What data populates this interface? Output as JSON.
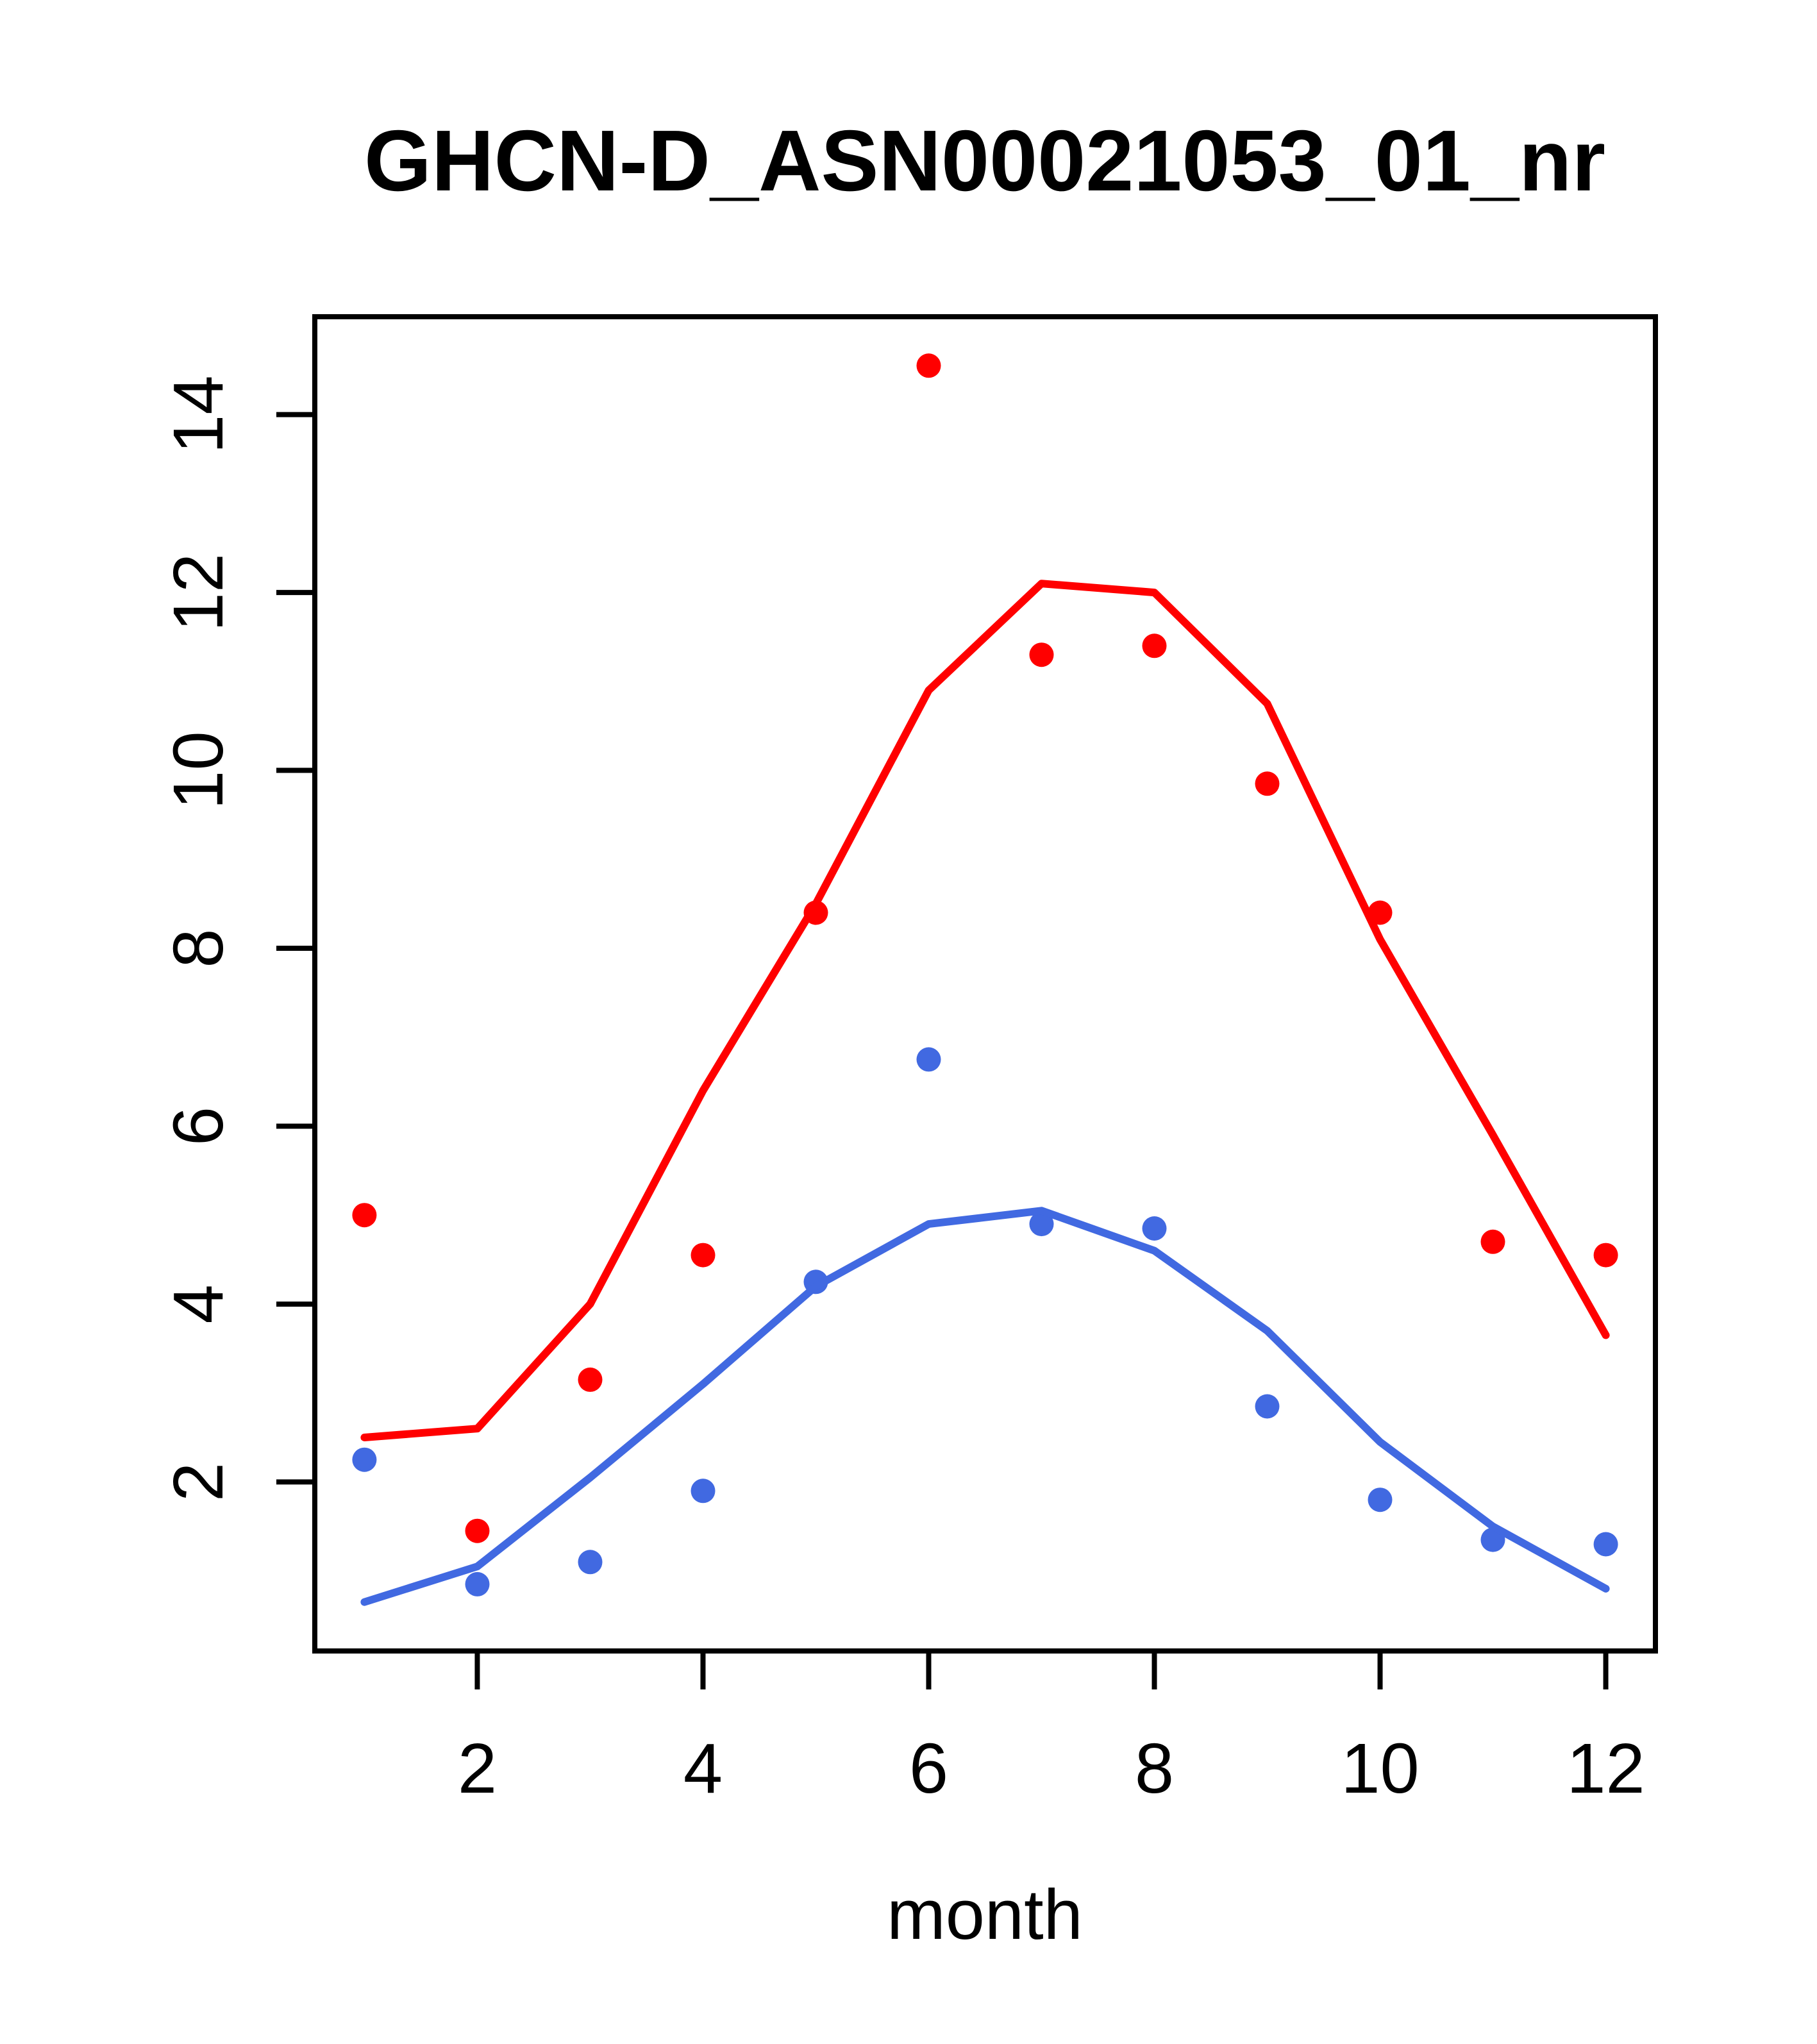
{
  "page": {
    "background_color": "#ffffff",
    "foreground_color": "#000000"
  },
  "chart_data": {
    "type": "scatter",
    "title": "GHCN-D_ASN00021053_01_nr",
    "xlabel": "month",
    "ylabel": "",
    "grid": false,
    "legend_position": "none",
    "x_ticks": [
      2,
      4,
      6,
      8,
      10,
      12
    ],
    "y_ticks": [
      2,
      4,
      6,
      8,
      10,
      12,
      14
    ],
    "xlim": [
      0.56,
      12.44
    ],
    "ylim": [
      0.1,
      15.1
    ],
    "months": [
      1,
      2,
      3,
      4,
      5,
      6,
      7,
      8,
      9,
      10,
      11,
      12
    ],
    "colors": {
      "red_series": "#ff0000",
      "blue_series": "#4169e1",
      "axis": "#000000"
    },
    "series": [
      {
        "name": "red-points",
        "kind": "points",
        "color": "#ff0000",
        "values": [
          5.0,
          1.45,
          3.15,
          4.55,
          8.4,
          14.55,
          11.3,
          11.4,
          9.85,
          8.4,
          4.7,
          4.55
        ]
      },
      {
        "name": "blue-points",
        "kind": "points",
        "color": "#4169e1",
        "values": [
          2.25,
          0.85,
          1.1,
          1.9,
          4.25,
          6.75,
          4.9,
          4.85,
          2.85,
          1.8,
          1.35,
          1.3
        ]
      },
      {
        "name": "red-fit-line",
        "kind": "line",
        "color": "#ff0000",
        "values": [
          2.5,
          2.6,
          4.0,
          6.4,
          8.5,
          10.9,
          12.1,
          12.0,
          10.75,
          8.1,
          5.9,
          3.65
        ]
      },
      {
        "name": "blue-fit-line",
        "kind": "line",
        "color": "#4169e1",
        "values": [
          0.65,
          1.05,
          2.05,
          3.1,
          4.2,
          4.9,
          5.05,
          4.6,
          3.7,
          2.45,
          1.5,
          0.8
        ]
      }
    ]
  }
}
